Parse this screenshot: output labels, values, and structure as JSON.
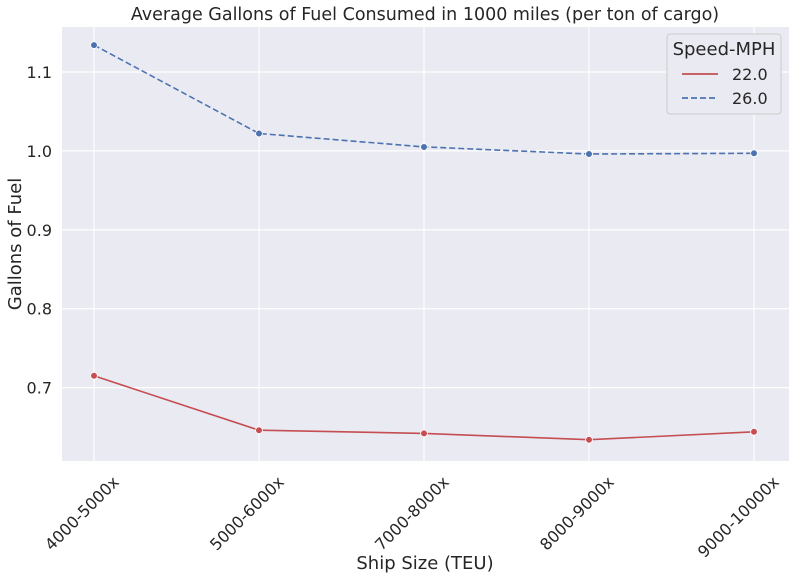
{
  "chart_data": {
    "type": "line",
    "title": "Average Gallons of Fuel Consumed in 1000 miles (per ton of cargo)",
    "xlabel": "Ship Size (TEU)",
    "ylabel": "Gallons of Fuel",
    "categories": [
      "4000-5000x",
      "5000-6000x",
      "7000-8000x",
      "8000-9000x",
      "9000-10000x"
    ],
    "ylim": [
      0.607,
      1.157
    ],
    "yticks": [
      "0.7",
      "0.8",
      "0.9",
      "1.0",
      "1.1"
    ],
    "grid": true,
    "legend": {
      "title": "Speed-MPH",
      "position": "top-right"
    },
    "series": [
      {
        "name": "22.0",
        "values": [
          0.715,
          0.646,
          0.642,
          0.634,
          0.644
        ],
        "color": "#c44e52",
        "dash": "solid"
      },
      {
        "name": "26.0",
        "values": [
          1.134,
          1.022,
          1.005,
          0.996,
          0.997
        ],
        "color": "#4c72b0",
        "dash": "dashed"
      }
    ]
  },
  "colors": {
    "plot_background": "#eaeaf2",
    "grid": "#ffffff",
    "text": "#262626"
  }
}
